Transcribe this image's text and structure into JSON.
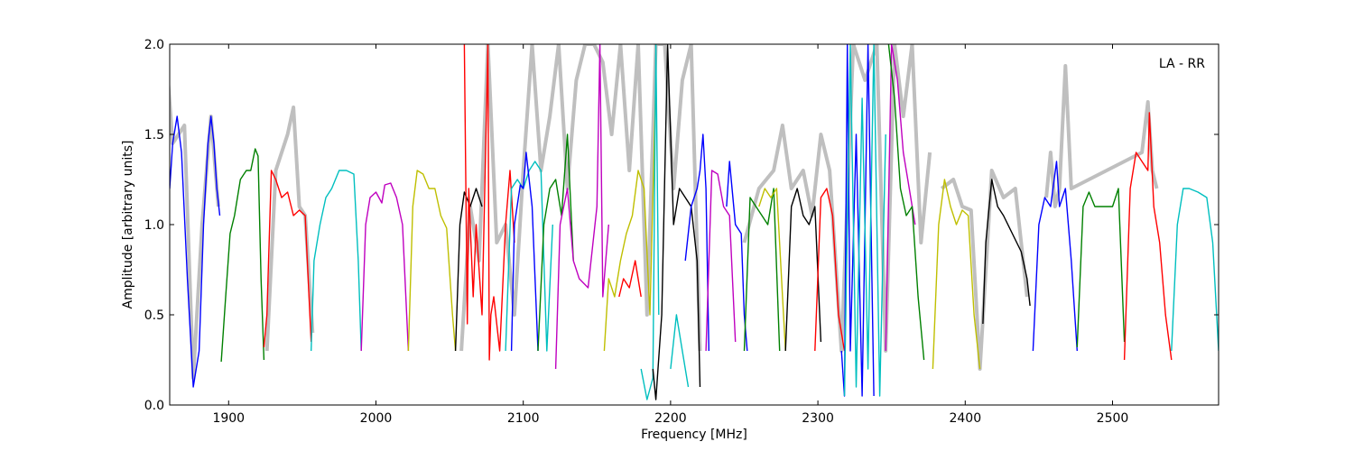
{
  "chart_data": {
    "type": "line",
    "title": "",
    "annotation": "LA - RR",
    "xlabel": "Frequency [MHz]",
    "ylabel": "Amplitude [arbitrary units]",
    "xlim": [
      1860,
      2572
    ],
    "ylim": [
      0.0,
      2.0
    ],
    "grid": false,
    "x_ticks": [
      1900,
      2000,
      2100,
      2200,
      2300,
      2400,
      2500
    ],
    "x_tick_labels": [
      "1900",
      "2000",
      "2100",
      "2200",
      "2300",
      "2400",
      "2500"
    ],
    "y_ticks": [
      0.0,
      0.5,
      1.0,
      1.5,
      2.0
    ],
    "y_tick_labels": [
      "0.0",
      "0.5",
      "1.0",
      "1.5",
      "2.0"
    ],
    "background": {
      "color": "#bfbfbf",
      "segments": [
        {
          "x": [
            1858,
            1862,
            1870,
            1876,
            1882,
            1888,
            1893
          ],
          "y": [
            1.9,
            1.45,
            1.55,
            0.15,
            1.0,
            1.6,
            1.1
          ]
        },
        {
          "x": [
            1926,
            1932,
            1940,
            1944,
            1948,
            1952,
            1957
          ],
          "y": [
            0.3,
            1.3,
            1.5,
            1.65,
            1.1,
            1.05,
            0.4
          ]
        },
        {
          "x": [
            2058,
            2064,
            2070,
            2076,
            2082,
            2088,
            2094,
            2100,
            2106,
            2112,
            2118,
            2124,
            2130,
            2136,
            2142,
            2148,
            2154,
            2160,
            2166,
            2172,
            2178,
            2184,
            2190,
            2196,
            2202,
            2208,
            2214,
            2220
          ],
          "y": [
            0.3,
            1.1,
            0.8,
            2.0,
            0.9,
            1.0,
            0.5,
            1.3,
            2.0,
            1.3,
            1.6,
            2.0,
            1.2,
            1.8,
            2.0,
            2.0,
            1.9,
            1.5,
            2.0,
            1.3,
            2.0,
            0.5,
            2.0,
            2.0,
            1.2,
            1.8,
            2.0,
            0.3
          ]
        },
        {
          "x": [
            2250,
            2260,
            2270,
            2276,
            2282,
            2290,
            2296,
            2302,
            2308,
            2316,
            2324,
            2332,
            2340,
            2346,
            2352,
            2358,
            2364,
            2370,
            2376
          ],
          "y": [
            0.9,
            1.2,
            1.3,
            1.55,
            1.2,
            1.3,
            1.05,
            1.5,
            1.3,
            0.3,
            2.0,
            1.8,
            2.0,
            0.3,
            2.0,
            1.6,
            2.0,
            0.9,
            1.4
          ]
        },
        {
          "x": [
            2384,
            2392,
            2398,
            2404,
            2410,
            2418,
            2426,
            2434,
            2442
          ],
          "y": [
            1.2,
            1.25,
            1.1,
            1.08,
            0.2,
            1.3,
            1.15,
            1.2,
            0.6
          ]
        },
        {
          "x": [
            2455,
            2458,
            2461,
            2464,
            2468,
            2472,
            2520,
            2524,
            2527,
            2530
          ],
          "y": [
            1.15,
            1.4,
            1.1,
            1.2,
            1.88,
            1.2,
            1.4,
            1.68,
            1.3,
            1.2
          ]
        }
      ]
    },
    "series": [
      {
        "color": "#0000ff",
        "x": [
          1859,
          1860,
          1862,
          1865,
          1868,
          1872,
          1876,
          1880,
          1883,
          1886,
          1888,
          1890,
          1892,
          1894
        ],
        "y": [
          2.0,
          1.2,
          1.45,
          1.6,
          1.4,
          0.7,
          0.1,
          0.3,
          1.0,
          1.45,
          1.6,
          1.45,
          1.2,
          1.05
        ]
      },
      {
        "color": "#008000",
        "x": [
          1895,
          1898,
          1901,
          1904,
          1908,
          1912,
          1915,
          1918,
          1920,
          1922,
          1924
        ],
        "y": [
          0.24,
          0.6,
          0.95,
          1.05,
          1.25,
          1.3,
          1.3,
          1.42,
          1.38,
          0.7,
          0.25
        ]
      },
      {
        "color": "#ff0000",
        "x": [
          1924,
          1926,
          1929,
          1932,
          1936,
          1940,
          1944,
          1948,
          1952,
          1956
        ],
        "y": [
          0.32,
          0.5,
          1.3,
          1.25,
          1.15,
          1.18,
          1.05,
          1.08,
          1.05,
          0.35
        ]
      },
      {
        "color": "#00bfbf",
        "x": [
          1956,
          1958,
          1962,
          1966,
          1970,
          1975,
          1980,
          1985,
          1988,
          1990
        ],
        "y": [
          0.3,
          0.8,
          1.0,
          1.15,
          1.2,
          1.3,
          1.3,
          1.28,
          0.8,
          0.3
        ]
      },
      {
        "color": "#bf00bf",
        "x": [
          1990,
          1993,
          1996,
          2000,
          2004,
          2006,
          2010,
          2014,
          2018,
          2022
        ],
        "y": [
          0.3,
          1.0,
          1.15,
          1.18,
          1.12,
          1.22,
          1.23,
          1.15,
          1.0,
          0.3
        ]
      },
      {
        "color": "#bfbf00",
        "x": [
          2022,
          2025,
          2028,
          2032,
          2036,
          2040,
          2044,
          2048,
          2052,
          2054
        ],
        "y": [
          0.3,
          1.1,
          1.3,
          1.28,
          1.2,
          1.2,
          1.05,
          0.98,
          0.5,
          0.3
        ]
      },
      {
        "color": "#000000",
        "x": [
          2054,
          2057,
          2060,
          2064,
          2068,
          2072
        ],
        "y": [
          0.3,
          1.0,
          1.18,
          1.1,
          1.2,
          1.1
        ]
      },
      {
        "color": "#ff0000",
        "x": [
          2060,
          2062,
          2063,
          2066,
          2068,
          2072,
          2076,
          2077,
          2078,
          2080,
          2084,
          2088,
          2091,
          2094
        ],
        "y": [
          2.0,
          0.45,
          1.2,
          0.6,
          1.0,
          0.5,
          2.0,
          0.25,
          0.5,
          0.6,
          0.3,
          1.0,
          1.3,
          0.9
        ]
      },
      {
        "color": "#00bfbf",
        "x": [
          2088,
          2092,
          2096,
          2100,
          2104,
          2108,
          2112,
          2116,
          2120
        ],
        "y": [
          0.3,
          1.2,
          1.25,
          1.2,
          1.3,
          1.35,
          1.3,
          0.3,
          1.0
        ]
      },
      {
        "color": "#0000ff",
        "x": [
          2092,
          2094,
          2098,
          2100,
          2102,
          2106,
          2110
        ],
        "y": [
          0.3,
          1.0,
          1.22,
          1.2,
          1.4,
          1.1,
          0.3
        ]
      },
      {
        "color": "#008000",
        "x": [
          2110,
          2114,
          2118,
          2122,
          2126,
          2130,
          2134
        ],
        "y": [
          0.3,
          1.0,
          1.2,
          1.25,
          1.05,
          1.5,
          0.8
        ]
      },
      {
        "color": "#bf00bf",
        "x": [
          2122,
          2125,
          2130,
          2134,
          2138,
          2144,
          2150,
          2152,
          2154,
          2158
        ],
        "y": [
          0.2,
          1.0,
          1.2,
          0.8,
          0.7,
          0.65,
          1.1,
          2.0,
          0.6,
          1.0
        ]
      },
      {
        "color": "#bfbf00",
        "x": [
          2155,
          2158,
          2162,
          2166,
          2170,
          2174,
          2178,
          2182,
          2186,
          2190
        ],
        "y": [
          0.3,
          0.7,
          0.6,
          0.8,
          0.95,
          1.05,
          1.3,
          1.2,
          0.5,
          1.8
        ]
      },
      {
        "color": "#ff0000",
        "x": [
          2165,
          2168,
          2172,
          2176,
          2180
        ],
        "y": [
          0.6,
          0.7,
          0.65,
          0.8,
          0.6
        ]
      },
      {
        "color": "#00bfbf",
        "x": [
          2180,
          2184,
          2188,
          2190,
          2192
        ],
        "y": [
          0.2,
          0.03,
          0.15,
          2.0,
          0.5
        ]
      },
      {
        "color": "#000000",
        "x": [
          2188,
          2190,
          2194,
          2198,
          2202,
          2206,
          2210,
          2214,
          2218,
          2220
        ],
        "y": [
          0.2,
          0.03,
          0.5,
          2.0,
          1.0,
          1.2,
          1.15,
          1.1,
          0.8,
          0.1
        ]
      },
      {
        "color": "#00bfbf",
        "x": [
          2200,
          2204,
          2208,
          2212
        ],
        "y": [
          0.2,
          0.5,
          0.3,
          0.1
        ]
      },
      {
        "color": "#0000ff",
        "x": [
          2210,
          2214,
          2218,
          2220,
          2222,
          2224,
          2226
        ],
        "y": [
          0.8,
          1.1,
          1.2,
          1.3,
          1.5,
          1.2,
          0.3
        ]
      },
      {
        "color": "#bf00bf",
        "x": [
          2224,
          2228,
          2232,
          2236,
          2240,
          2244
        ],
        "y": [
          0.3,
          1.3,
          1.28,
          1.1,
          1.05,
          0.35
        ]
      },
      {
        "color": "#0000ff",
        "x": [
          2238,
          2240,
          2244,
          2248,
          2250,
          2252
        ],
        "y": [
          1.1,
          1.35,
          1.0,
          0.95,
          0.5,
          0.3
        ]
      },
      {
        "color": "#008000",
        "x": [
          2250,
          2254,
          2258,
          2262,
          2266,
          2270,
          2274
        ],
        "y": [
          0.3,
          1.15,
          1.1,
          1.05,
          1.0,
          1.2,
          0.3
        ]
      },
      {
        "color": "#bfbf00",
        "x": [
          2260,
          2264,
          2268,
          2272,
          2276,
          2278
        ],
        "y": [
          1.1,
          1.2,
          1.15,
          1.2,
          0.6,
          0.3
        ]
      },
      {
        "color": "#000000",
        "x": [
          2278,
          2282,
          2286,
          2290,
          2294,
          2298,
          2302
        ],
        "y": [
          0.3,
          1.1,
          1.2,
          1.05,
          1.0,
          1.1,
          0.35
        ]
      },
      {
        "color": "#ff0000",
        "x": [
          2298,
          2302,
          2306,
          2310,
          2314,
          2318
        ],
        "y": [
          0.3,
          1.15,
          1.2,
          1.05,
          0.5,
          0.3
        ]
      },
      {
        "color": "#0000ff",
        "x": [
          2316,
          2318,
          2320,
          2322,
          2326,
          2330,
          2334,
          2338
        ],
        "y": [
          0.3,
          0.05,
          2.0,
          0.3,
          1.5,
          0.05,
          2.0,
          0.05
        ]
      },
      {
        "color": "#00bfbf",
        "x": [
          2318,
          2322,
          2326,
          2330,
          2334,
          2338,
          2342,
          2346
        ],
        "y": [
          0.05,
          2.0,
          0.1,
          1.7,
          0.2,
          2.0,
          0.05,
          1.5
        ]
      },
      {
        "color": "#bf00bf",
        "x": [
          2346,
          2350,
          2354,
          2358,
          2362,
          2366
        ],
        "y": [
          0.3,
          2.0,
          1.8,
          1.4,
          1.2,
          1.0
        ]
      },
      {
        "color": "#008000",
        "x": [
          2348,
          2352,
          2356,
          2360,
          2364,
          2368,
          2372
        ],
        "y": [
          2.0,
          1.7,
          1.2,
          1.05,
          1.1,
          0.6,
          0.25
        ]
      },
      {
        "color": "#bfbf00",
        "x": [
          2378,
          2382,
          2386,
          2390,
          2394,
          2398,
          2402,
          2406,
          2410
        ],
        "y": [
          0.2,
          1.0,
          1.25,
          1.1,
          1.0,
          1.08,
          1.05,
          0.5,
          0.2
        ]
      },
      {
        "color": "#000000",
        "x": [
          2412,
          2414,
          2418,
          2422,
          2426,
          2432,
          2438,
          2442,
          2444
        ],
        "y": [
          0.45,
          0.9,
          1.25,
          1.1,
          1.05,
          0.95,
          0.85,
          0.7,
          0.55
        ]
      },
      {
        "color": "#0000ff",
        "x": [
          2446,
          2450,
          2454,
          2458,
          2462,
          2464,
          2468,
          2472,
          2476
        ],
        "y": [
          0.3,
          1.0,
          1.15,
          1.1,
          1.35,
          1.1,
          1.2,
          0.8,
          0.3
        ]
      },
      {
        "color": "#008000",
        "x": [
          2476,
          2480,
          2484,
          2488,
          2494,
          2500,
          2504,
          2508
        ],
        "y": [
          0.32,
          1.1,
          1.18,
          1.1,
          1.1,
          1.1,
          1.2,
          0.35
        ]
      },
      {
        "color": "#ff0000",
        "x": [
          2508,
          2512,
          2516,
          2520,
          2524,
          2525,
          2528,
          2532,
          2536,
          2540
        ],
        "y": [
          0.25,
          1.2,
          1.4,
          1.35,
          1.3,
          1.62,
          1.1,
          0.9,
          0.5,
          0.25
        ]
      },
      {
        "color": "#00bfbf",
        "x": [
          2540,
          2544,
          2548,
          2552,
          2558,
          2564,
          2568,
          2572
        ],
        "y": [
          0.3,
          1.0,
          1.2,
          1.2,
          1.18,
          1.15,
          0.9,
          0.3
        ]
      }
    ]
  }
}
